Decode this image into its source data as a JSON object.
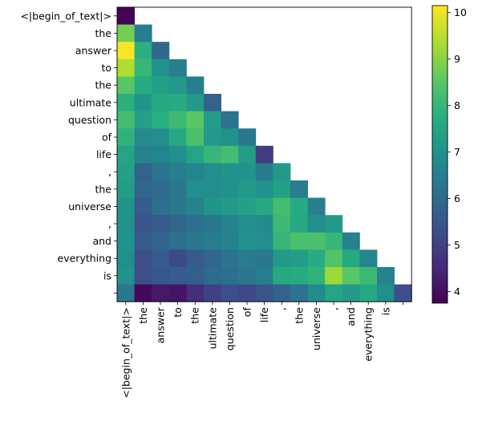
{
  "chart_data": {
    "type": "heatmap",
    "title": "",
    "xlabel": "",
    "ylabel": "",
    "tokens": [
      "<|begin_of_text|>",
      "the",
      " answer",
      " to",
      " the",
      " ultimate",
      " question",
      " of",
      " life",
      ",",
      " the",
      " universe",
      ",",
      " and",
      " everything",
      " is",
      ""
    ],
    "x_tick_labels": [
      "<|begin_of_text|>",
      "the",
      "answer",
      "to",
      "the",
      "ultimate",
      "question",
      "of",
      "life",
      ",",
      "the",
      "universe",
      ",",
      "and",
      "everything",
      "is",
      ""
    ],
    "y_tick_labels": [
      "<|begin_of_text|>",
      "the",
      "answer",
      "to",
      "the",
      "ultimate",
      "question",
      "of",
      "life",
      ",",
      "the",
      "universe",
      ",",
      "and",
      "everything",
      "is",
      ""
    ],
    "mask": "upper triangle (columns after row) not drawn",
    "matrix": [
      [
        3.8
      ],
      [
        8.8,
        6.4
      ],
      [
        10.1,
        7.8,
        5.9
      ],
      [
        9.4,
        8.0,
        7.0,
        6.5
      ],
      [
        8.5,
        7.7,
        7.4,
        7.2,
        6.5
      ],
      [
        7.8,
        7.1,
        7.6,
        7.7,
        7.2,
        5.8
      ],
      [
        8.2,
        7.4,
        7.8,
        8.1,
        8.5,
        7.3,
        6.2
      ],
      [
        7.9,
        6.8,
        6.9,
        7.6,
        8.3,
        7.2,
        7.0,
        6.3
      ],
      [
        7.5,
        6.6,
        6.7,
        6.9,
        7.5,
        8.0,
        8.2,
        7.3,
        4.9
      ],
      [
        7.4,
        5.8,
        6.2,
        6.5,
        6.7,
        6.9,
        7.1,
        7.0,
        6.4,
        7.2
      ],
      [
        7.3,
        5.9,
        6.0,
        6.3,
        6.9,
        6.9,
        7.0,
        7.2,
        7.0,
        7.4,
        6.4
      ],
      [
        7.1,
        5.6,
        6.1,
        6.3,
        6.6,
        7.1,
        7.2,
        7.4,
        7.6,
        8.2,
        7.7,
        6.5
      ],
      [
        7.0,
        5.4,
        5.6,
        5.9,
        6.1,
        6.3,
        6.6,
        6.9,
        6.8,
        8.1,
        7.6,
        6.9,
        7.2
      ],
      [
        7.0,
        5.6,
        5.8,
        6.1,
        6.3,
        6.4,
        6.6,
        7.0,
        6.9,
        8.0,
        8.3,
        8.3,
        8.0,
        6.6
      ],
      [
        6.9,
        5.3,
        5.6,
        5.2,
        5.6,
        5.9,
        6.2,
        6.4,
        6.3,
        7.2,
        7.3,
        7.7,
        8.4,
        7.6,
        6.7
      ],
      [
        7.0,
        5.3,
        5.5,
        5.6,
        5.7,
        6.0,
        6.1,
        6.3,
        6.5,
        7.6,
        7.7,
        7.9,
        9.2,
        8.5,
        8.1,
        6.6
      ],
      [
        6.3,
        3.9,
        4.2,
        4.1,
        4.6,
        5.0,
        5.3,
        5.2,
        5.4,
        5.8,
        6.2,
        6.8,
        7.5,
        7.2,
        7.6,
        6.9,
        5.3
      ]
    ],
    "colorbar": {
      "colormap": "viridis",
      "vmin": 3.75,
      "vmax": 10.15,
      "ticks": [
        4,
        5,
        6,
        7,
        8,
        9,
        10
      ]
    }
  }
}
